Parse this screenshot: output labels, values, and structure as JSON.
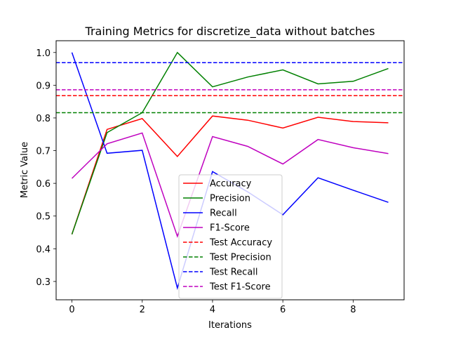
{
  "chart_data": {
    "type": "line",
    "title": "Training Metrics for discretize_data without batches",
    "xlabel": "Iterations",
    "ylabel": "Metric Value",
    "x": [
      0,
      1,
      2,
      3,
      4,
      5,
      6,
      7,
      8,
      9
    ],
    "xlim": [
      -0.45,
      9.45
    ],
    "ylim": [
      0.244,
      1.036
    ],
    "xticks": [
      0,
      2,
      4,
      6,
      8
    ],
    "yticks": [
      0.3,
      0.4,
      0.5,
      0.6,
      0.7,
      0.8,
      0.9,
      1.0
    ],
    "xtick_labels": [
      "0",
      "2",
      "4",
      "6",
      "8"
    ],
    "ytick_labels": [
      "0.3",
      "0.4",
      "0.5",
      "0.6",
      "0.7",
      "0.8",
      "0.9",
      "1.0"
    ],
    "grid": false,
    "legend_position": "lower center",
    "series": [
      {
        "name": "Accuracy",
        "color": "#ff0000",
        "style": "solid",
        "values": [
          0.444,
          0.765,
          0.798,
          0.682,
          0.806,
          0.793,
          0.769,
          0.802,
          0.789,
          0.785
        ]
      },
      {
        "name": "Precision",
        "color": "#008000",
        "style": "solid",
        "values": [
          0.444,
          0.755,
          0.816,
          1.0,
          0.895,
          0.925,
          0.947,
          0.904,
          0.912,
          0.951
        ]
      },
      {
        "name": "Recall",
        "color": "#0000ff",
        "style": "solid",
        "values": [
          1.0,
          0.692,
          0.701,
          0.28,
          0.636,
          0.574,
          0.504,
          0.617,
          0.579,
          0.542
        ]
      },
      {
        "name": "F1-Score",
        "color": "#bf00bf",
        "style": "solid",
        "values": [
          0.615,
          0.721,
          0.754,
          0.438,
          0.743,
          0.713,
          0.659,
          0.734,
          0.709,
          0.691
        ]
      }
    ],
    "reference_lines": [
      {
        "name": "Test Accuracy",
        "color": "#ff0000",
        "style": "dashed",
        "value": 0.868
      },
      {
        "name": "Test Precision",
        "color": "#008000",
        "style": "dashed",
        "value": 0.816
      },
      {
        "name": "Test Recall",
        "color": "#0000ff",
        "style": "dashed",
        "value": 0.969
      },
      {
        "name": "Test F1-Score",
        "color": "#bf00bf",
        "style": "dashed",
        "value": 0.886
      }
    ]
  }
}
